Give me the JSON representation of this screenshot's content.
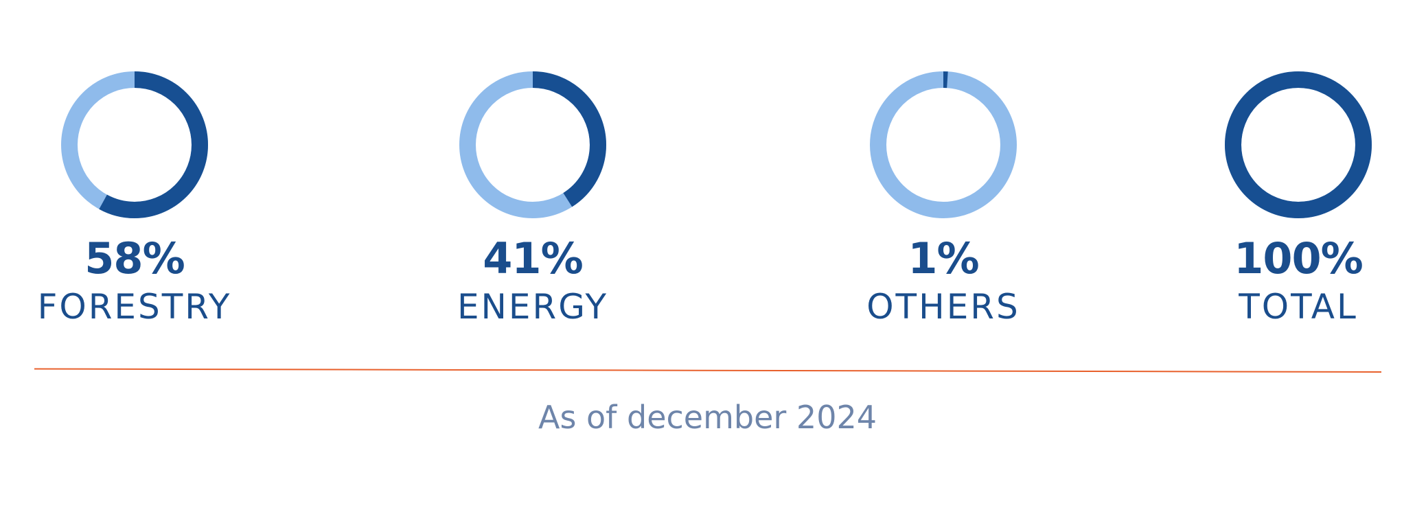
{
  "chart_data": {
    "type": "pie",
    "style": "donut",
    "legend": "none",
    "colors": {
      "share": "#174f92",
      "remainder": "#8fbbeb",
      "divider": "#e8602c",
      "footnote": "#6e85aa"
    },
    "items": [
      {
        "label": "FORESTRY",
        "value_text": "58%",
        "value": 58
      },
      {
        "label": "ENERGY",
        "value_text": "41%",
        "value": 41
      },
      {
        "label": "OTHERS",
        "value_text": "1%",
        "value": 1
      },
      {
        "label": "TOTAL",
        "value_text": "100%",
        "value": 100
      }
    ]
  },
  "footnote": "As of december 2024"
}
